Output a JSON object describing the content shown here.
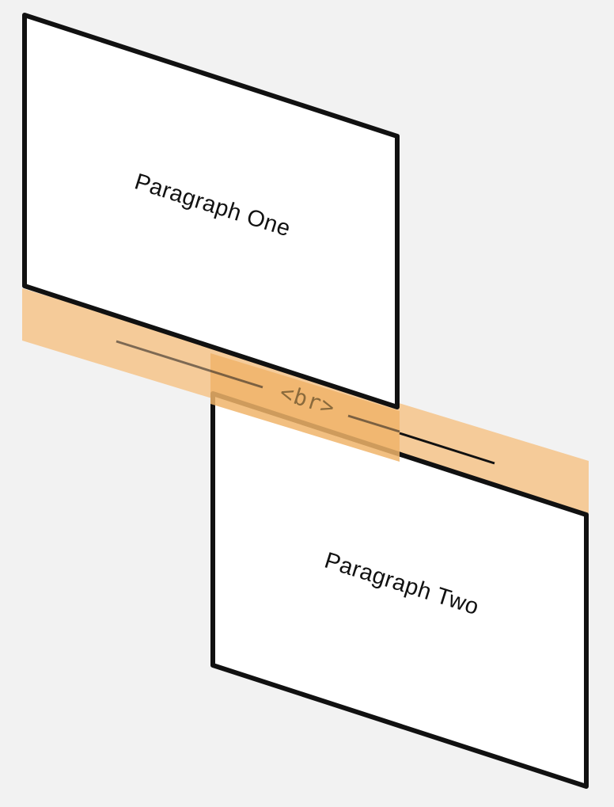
{
  "paragraph_one": {
    "label": "Paragraph One"
  },
  "paragraph_two": {
    "label": "Paragraph Two"
  },
  "line_break": {
    "label": "<br>"
  },
  "colors": {
    "background": "#f2f2f2",
    "panel_fill": "#ffffff",
    "panel_stroke": "#111111",
    "highlight_band": "#f4c894",
    "highlight_overlap": "#f0b46a",
    "br_text": "#8a6a3c"
  }
}
